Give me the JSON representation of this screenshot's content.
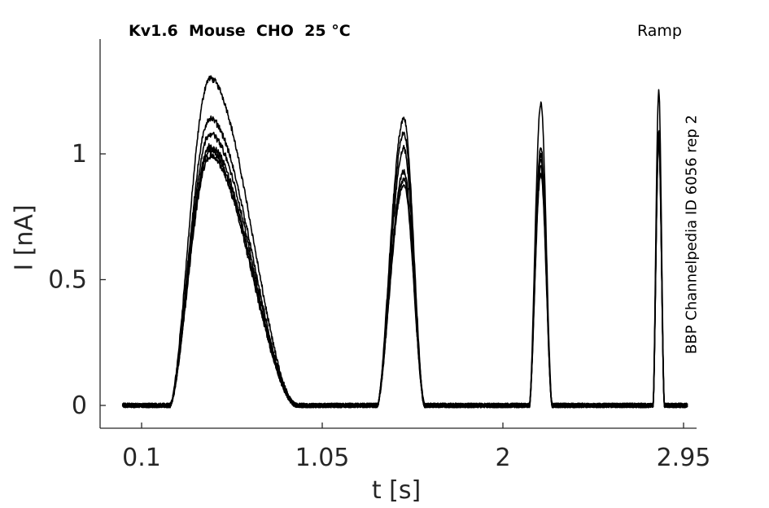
{
  "header": {
    "title": "Kv1.6  Mouse  CHO  25 °C",
    "protocol": "Ramp"
  },
  "side_note": "BBP Channelpedia ID 6056 rep 2",
  "chart_data": {
    "type": "line",
    "title": "Kv1.6  Mouse  CHO  25 °C",
    "xlabel": "t [s]",
    "ylabel": "I [nA]",
    "xlim": [
      -0.05,
      3.05
    ],
    "ylim": [
      -0.09,
      1.4
    ],
    "xticks": [
      0.1,
      1.05,
      2,
      2.95
    ],
    "xtick_labels": [
      "0.1",
      "1.05",
      "2",
      "2.95"
    ],
    "yticks": [
      0,
      0.5,
      1
    ],
    "ytick_labels": [
      "0",
      "0.5",
      "1"
    ],
    "grid": false,
    "line_color": "#000000",
    "pulses": [
      {
        "start": 0.25,
        "peak_t": 0.46,
        "end": 0.92
      },
      {
        "start": 1.34,
        "peak_t": 1.48,
        "end": 1.59
      },
      {
        "start": 2.14,
        "peak_t": 2.2,
        "end": 2.26
      },
      {
        "start": 2.79,
        "peak_t": 2.82,
        "end": 2.85
      }
    ],
    "series": [
      {
        "peaks": [
          1.3,
          1.14,
          1.2,
          1.25
        ]
      },
      {
        "peaks": [
          1.14,
          1.08,
          1.03,
          1.1
        ]
      },
      {
        "peaks": [
          1.08,
          1.02,
          1.0,
          1.08
        ]
      },
      {
        "peaks": [
          1.03,
          0.93,
          0.98,
          1.07
        ]
      },
      {
        "peaks": [
          1.01,
          0.9,
          0.95,
          1.06
        ]
      },
      {
        "peaks": [
          0.99,
          0.88,
          0.92,
          1.05
        ]
      }
    ]
  }
}
